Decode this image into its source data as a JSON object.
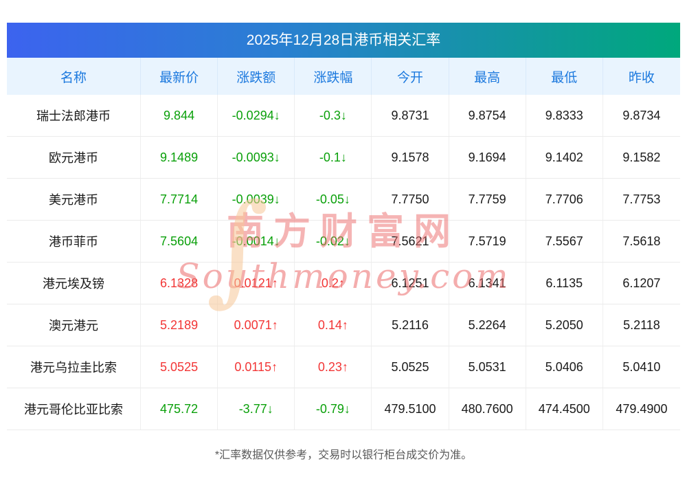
{
  "page": {
    "title": "2025年12月28日港币相关汇率",
    "footnote": "*汇率数据仅供参考，交易时以银行柜台成交价为准。"
  },
  "watermark": {
    "line1": "南方财富网",
    "line2": "Southmoney.com",
    "glyph": "∫"
  },
  "colors": {
    "up": "#f23535",
    "down": "#0aa00a",
    "header_text": "#1c79de",
    "title_gradient_left": "#3c63ef",
    "title_gradient_right": "#00a87c"
  },
  "chart_data": {
    "type": "table",
    "title": "2025年12月28日港币相关汇率",
    "columns": [
      "名称",
      "最新价",
      "涨跌额",
      "涨跌幅",
      "今开",
      "最高",
      "最低",
      "昨收"
    ],
    "rows": [
      {
        "name": "瑞士法郎港币",
        "price": "9.844",
        "change": "-0.0294↓",
        "pct": "-0.3↓",
        "open": "9.8731",
        "high": "9.8754",
        "low": "9.8333",
        "prev": "9.8734",
        "direction": "down"
      },
      {
        "name": "欧元港币",
        "price": "9.1489",
        "change": "-0.0093↓",
        "pct": "-0.1↓",
        "open": "9.1578",
        "high": "9.1694",
        "low": "9.1402",
        "prev": "9.1582",
        "direction": "down"
      },
      {
        "name": "美元港币",
        "price": "7.7714",
        "change": "-0.0039↓",
        "pct": "-0.05↓",
        "open": "7.7750",
        "high": "7.7759",
        "low": "7.7706",
        "prev": "7.7753",
        "direction": "down"
      },
      {
        "name": "港币菲币",
        "price": "7.5604",
        "change": "-0.0014↓",
        "pct": "-0.02↓",
        "open": "7.5621",
        "high": "7.5719",
        "low": "7.5567",
        "prev": "7.5618",
        "direction": "down"
      },
      {
        "name": "港元埃及镑",
        "price": "6.1328",
        "change": "0.0121↑",
        "pct": "0.2↑",
        "open": "6.1251",
        "high": "6.1341",
        "low": "6.1135",
        "prev": "6.1207",
        "direction": "up"
      },
      {
        "name": "澳元港元",
        "price": "5.2189",
        "change": "0.0071↑",
        "pct": "0.14↑",
        "open": "5.2116",
        "high": "5.2264",
        "low": "5.2050",
        "prev": "5.2118",
        "direction": "up"
      },
      {
        "name": "港元乌拉圭比索",
        "price": "5.0525",
        "change": "0.0115↑",
        "pct": "0.23↑",
        "open": "5.0525",
        "high": "5.0531",
        "low": "5.0406",
        "prev": "5.0410",
        "direction": "up"
      },
      {
        "name": "港元哥伦比亚比索",
        "price": "475.72",
        "change": "-3.77↓",
        "pct": "-0.79↓",
        "open": "479.5100",
        "high": "480.7600",
        "low": "474.4500",
        "prev": "479.4900",
        "direction": "down"
      }
    ]
  }
}
